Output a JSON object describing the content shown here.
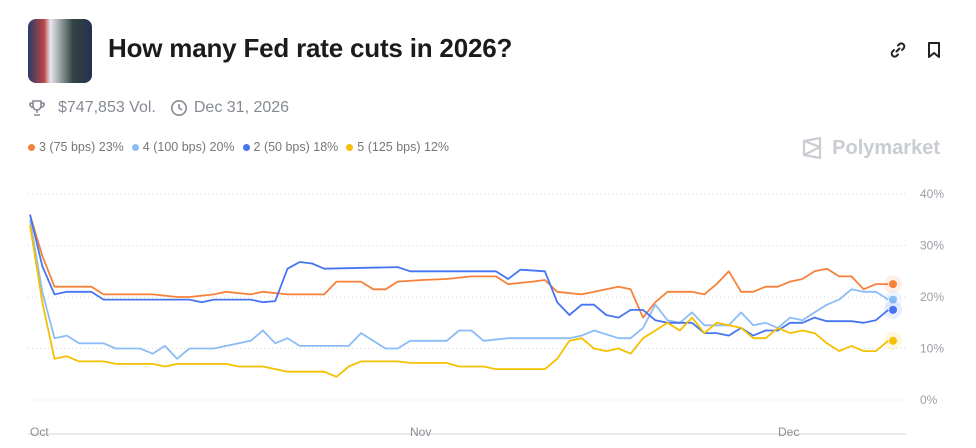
{
  "header": {
    "title": "How many Fed rate cuts in 2026?",
    "volume": "$747,853 Vol.",
    "end_date": "Dec 31, 2026",
    "brand": "Polymarket"
  },
  "icons": {
    "link": "link-icon",
    "bookmark": "bookmark-icon",
    "trophy": "trophy-icon",
    "clock": "clock-icon",
    "logo": "polymarket-logo-icon"
  },
  "legend": [
    {
      "label": "3 (75 bps) 23%",
      "color": "#f7813a"
    },
    {
      "label": "4 (100 bps) 20%",
      "color": "#8cbcf5"
    },
    {
      "label": "2 (50 bps) 18%",
      "color": "#4575f2"
    },
    {
      "label": "5 (125 bps) 12%",
      "color": "#f5c000"
    }
  ],
  "chart_data": {
    "type": "line",
    "title": "",
    "xlabel": "",
    "ylabel": "",
    "x_ticks": [
      "Oct",
      "Nov",
      "Dec"
    ],
    "y_ticks": [
      "0%",
      "10%",
      "20%",
      "30%",
      "40%"
    ],
    "ylim": [
      0,
      40
    ],
    "grid": true,
    "series": [
      {
        "name": "3 (75 bps)",
        "color": "#f7813a",
        "points": [
          [
            "Oct 1",
            36
          ],
          [
            "Oct 2",
            28
          ],
          [
            "Oct 3",
            22
          ],
          [
            "Oct 6",
            22
          ],
          [
            "Oct 7",
            20.5
          ],
          [
            "Oct 11",
            20.5
          ],
          [
            "Oct 13",
            20
          ],
          [
            "Oct 14",
            20
          ],
          [
            "Oct 16",
            20.5
          ],
          [
            "Oct 17",
            21
          ],
          [
            "Oct 19",
            20.5
          ],
          [
            "Oct 20",
            21
          ],
          [
            "Oct 22",
            20.5
          ],
          [
            "Oct 25",
            20.5
          ],
          [
            "Oct 26",
            23
          ],
          [
            "Oct 28",
            23
          ],
          [
            "Oct 29",
            21.5
          ],
          [
            "Oct 30",
            21.5
          ],
          [
            "Oct 31",
            23
          ],
          [
            "Nov 2",
            23.3
          ],
          [
            "Nov 4",
            23.5
          ],
          [
            "Nov 6",
            24
          ],
          [
            "Nov 8",
            24
          ],
          [
            "Nov 9",
            22.5
          ],
          [
            "Nov 11",
            23
          ],
          [
            "Nov 12",
            23.3
          ],
          [
            "Nov 13",
            21
          ],
          [
            "Nov 15",
            20.5
          ],
          [
            "Nov 17",
            21.5
          ],
          [
            "Nov 18",
            22
          ],
          [
            "Nov 19",
            21.5
          ],
          [
            "Nov 20",
            16
          ],
          [
            "Nov 21",
            19
          ],
          [
            "Nov 22",
            21
          ],
          [
            "Nov 24",
            21
          ],
          [
            "Nov 25",
            20.5
          ],
          [
            "Nov 26",
            22.5
          ],
          [
            "Nov 27",
            25
          ],
          [
            "Nov 28",
            21
          ],
          [
            "Nov 29",
            21
          ],
          [
            "Nov 30",
            22
          ],
          [
            "Dec 1",
            22
          ],
          [
            "Dec 2",
            23
          ],
          [
            "Dec 3",
            23.5
          ],
          [
            "Dec 4",
            25
          ],
          [
            "Dec 5",
            25.5
          ],
          [
            "Dec 6",
            24
          ],
          [
            "Dec 7",
            24
          ],
          [
            "Dec 8",
            21.5
          ],
          [
            "Dec 9",
            22.5
          ],
          [
            "Dec 10",
            22.5
          ]
        ]
      },
      {
        "name": "4 (100 bps)",
        "color": "#8cbcf5",
        "points": [
          [
            "Oct 1",
            35
          ],
          [
            "Oct 2",
            21
          ],
          [
            "Oct 3",
            12
          ],
          [
            "Oct 4",
            12.5
          ],
          [
            "Oct 5",
            11
          ],
          [
            "Oct 7",
            11
          ],
          [
            "Oct 8",
            10
          ],
          [
            "Oct 10",
            10
          ],
          [
            "Oct 11",
            9
          ],
          [
            "Oct 12",
            10.5
          ],
          [
            "Oct 13",
            8
          ],
          [
            "Oct 14",
            10
          ],
          [
            "Oct 16",
            10
          ],
          [
            "Oct 17",
            10.5
          ],
          [
            "Oct 19",
            11.5
          ],
          [
            "Oct 20",
            13.5
          ],
          [
            "Oct 21",
            11
          ],
          [
            "Oct 22",
            12
          ],
          [
            "Oct 23",
            10.5
          ],
          [
            "Oct 27",
            10.5
          ],
          [
            "Oct 28",
            13
          ],
          [
            "Oct 29",
            11.5
          ],
          [
            "Oct 30",
            10
          ],
          [
            "Oct 31",
            10
          ],
          [
            "Nov 1",
            11.5
          ],
          [
            "Nov 4",
            11.5
          ],
          [
            "Nov 5",
            13.5
          ],
          [
            "Nov 6",
            13.5
          ],
          [
            "Nov 7",
            11.5
          ],
          [
            "Nov 9",
            12
          ],
          [
            "Nov 14",
            12
          ],
          [
            "Nov 15",
            12.5
          ],
          [
            "Nov 16",
            13.5
          ],
          [
            "Nov 18",
            12
          ],
          [
            "Nov 19",
            12
          ],
          [
            "Nov 20",
            14
          ],
          [
            "Nov 21",
            18.5
          ],
          [
            "Nov 22",
            15.5
          ],
          [
            "Nov 23",
            15
          ],
          [
            "Nov 24",
            17
          ],
          [
            "Nov 25",
            14.5
          ],
          [
            "Nov 27",
            14.5
          ],
          [
            "Nov 28",
            17
          ],
          [
            "Nov 29",
            14.5
          ],
          [
            "Nov 30",
            15
          ],
          [
            "Dec 1",
            14
          ],
          [
            "Dec 2",
            16
          ],
          [
            "Dec 3",
            15.5
          ],
          [
            "Dec 4",
            17
          ],
          [
            "Dec 5",
            18.5
          ],
          [
            "Dec 6",
            19.5
          ],
          [
            "Dec 7",
            21.5
          ],
          [
            "Dec 8",
            21
          ],
          [
            "Dec 9",
            21
          ],
          [
            "Dec 10",
            19.5
          ]
        ]
      },
      {
        "name": "2 (50 bps)",
        "color": "#4575f2",
        "points": [
          [
            "Oct 1",
            36
          ],
          [
            "Oct 2",
            26
          ],
          [
            "Oct 3",
            20.5
          ],
          [
            "Oct 4",
            21
          ],
          [
            "Oct 6",
            21
          ],
          [
            "Oct 7",
            19.5
          ],
          [
            "Oct 14",
            19.5
          ],
          [
            "Oct 15",
            19
          ],
          [
            "Oct 16",
            19.5
          ],
          [
            "Oct 19",
            19.5
          ],
          [
            "Oct 20",
            19
          ],
          [
            "Oct 21",
            19.2
          ],
          [
            "Oct 22",
            25.5
          ],
          [
            "Oct 23",
            26.8
          ],
          [
            "Oct 24",
            26.5
          ],
          [
            "Oct 25",
            25.5
          ],
          [
            "Oct 31",
            25.8
          ],
          [
            "Nov 1",
            25
          ],
          [
            "Nov 8",
            25
          ],
          [
            "Nov 9",
            23.5
          ],
          [
            "Nov 10",
            25.3
          ],
          [
            "Nov 12",
            25
          ],
          [
            "Nov 13",
            19
          ],
          [
            "Nov 14",
            16.5
          ],
          [
            "Nov 15",
            18.5
          ],
          [
            "Nov 16",
            18.5
          ],
          [
            "Nov 17",
            16.5
          ],
          [
            "Nov 18",
            16
          ],
          [
            "Nov 19",
            17.5
          ],
          [
            "Nov 20",
            17.5
          ],
          [
            "Nov 21",
            15.5
          ],
          [
            "Nov 22",
            15
          ],
          [
            "Nov 24",
            15
          ],
          [
            "Nov 25",
            13
          ],
          [
            "Nov 26",
            13
          ],
          [
            "Nov 27",
            12.5
          ],
          [
            "Nov 28",
            14
          ],
          [
            "Nov 29",
            12.5
          ],
          [
            "Nov 30",
            13.5
          ],
          [
            "Dec 1",
            13.5
          ],
          [
            "Dec 2",
            15
          ],
          [
            "Dec 3",
            15
          ],
          [
            "Dec 4",
            16
          ],
          [
            "Dec 5",
            15.3
          ],
          [
            "Dec 7",
            15.3
          ],
          [
            "Dec 8",
            15
          ],
          [
            "Dec 9",
            15.5
          ],
          [
            "Dec 10",
            17.5
          ]
        ]
      },
      {
        "name": "5 (125 bps)",
        "color": "#f5c000",
        "points": [
          [
            "Oct 1",
            34
          ],
          [
            "Oct 2",
            19
          ],
          [
            "Oct 3",
            8
          ],
          [
            "Oct 4",
            8.5
          ],
          [
            "Oct 5",
            7.5
          ],
          [
            "Oct 7",
            7.5
          ],
          [
            "Oct 8",
            7
          ],
          [
            "Oct 11",
            7
          ],
          [
            "Oct 12",
            6.5
          ],
          [
            "Oct 13",
            7
          ],
          [
            "Oct 17",
            7
          ],
          [
            "Oct 18",
            6.5
          ],
          [
            "Oct 20",
            6.5
          ],
          [
            "Oct 21",
            6
          ],
          [
            "Oct 22",
            5.5
          ],
          [
            "Oct 25",
            5.5
          ],
          [
            "Oct 26",
            4.5
          ],
          [
            "Oct 27",
            6.5
          ],
          [
            "Oct 28",
            7.5
          ],
          [
            "Oct 31",
            7.5
          ],
          [
            "Nov 1",
            7.2
          ],
          [
            "Nov 4",
            7.2
          ],
          [
            "Nov 5",
            6.5
          ],
          [
            "Nov 7",
            6.5
          ],
          [
            "Nov 8",
            6
          ],
          [
            "Nov 12",
            6
          ],
          [
            "Nov 13",
            8
          ],
          [
            "Nov 14",
            11.5
          ],
          [
            "Nov 15",
            12
          ],
          [
            "Nov 16",
            10
          ],
          [
            "Nov 17",
            9.5
          ],
          [
            "Nov 18",
            10
          ],
          [
            "Nov 19",
            9
          ],
          [
            "Nov 20",
            12
          ],
          [
            "Nov 21",
            13.5
          ],
          [
            "Nov 22",
            15
          ],
          [
            "Nov 23",
            13.5
          ],
          [
            "Nov 24",
            16
          ],
          [
            "Nov 25",
            13
          ],
          [
            "Nov 26",
            15
          ],
          [
            "Nov 27",
            14.5
          ],
          [
            "Nov 28",
            14
          ],
          [
            "Nov 29",
            12
          ],
          [
            "Nov 30",
            12
          ],
          [
            "Dec 1",
            14
          ],
          [
            "Dec 2",
            13
          ],
          [
            "Dec 3",
            13.5
          ],
          [
            "Dec 4",
            13
          ],
          [
            "Dec 5",
            11
          ],
          [
            "Dec 6",
            9.5
          ],
          [
            "Dec 7",
            10.5
          ],
          [
            "Dec 8",
            9.5
          ],
          [
            "Dec 9",
            9.5
          ],
          [
            "Dec 10",
            11.5
          ]
        ]
      }
    ]
  }
}
